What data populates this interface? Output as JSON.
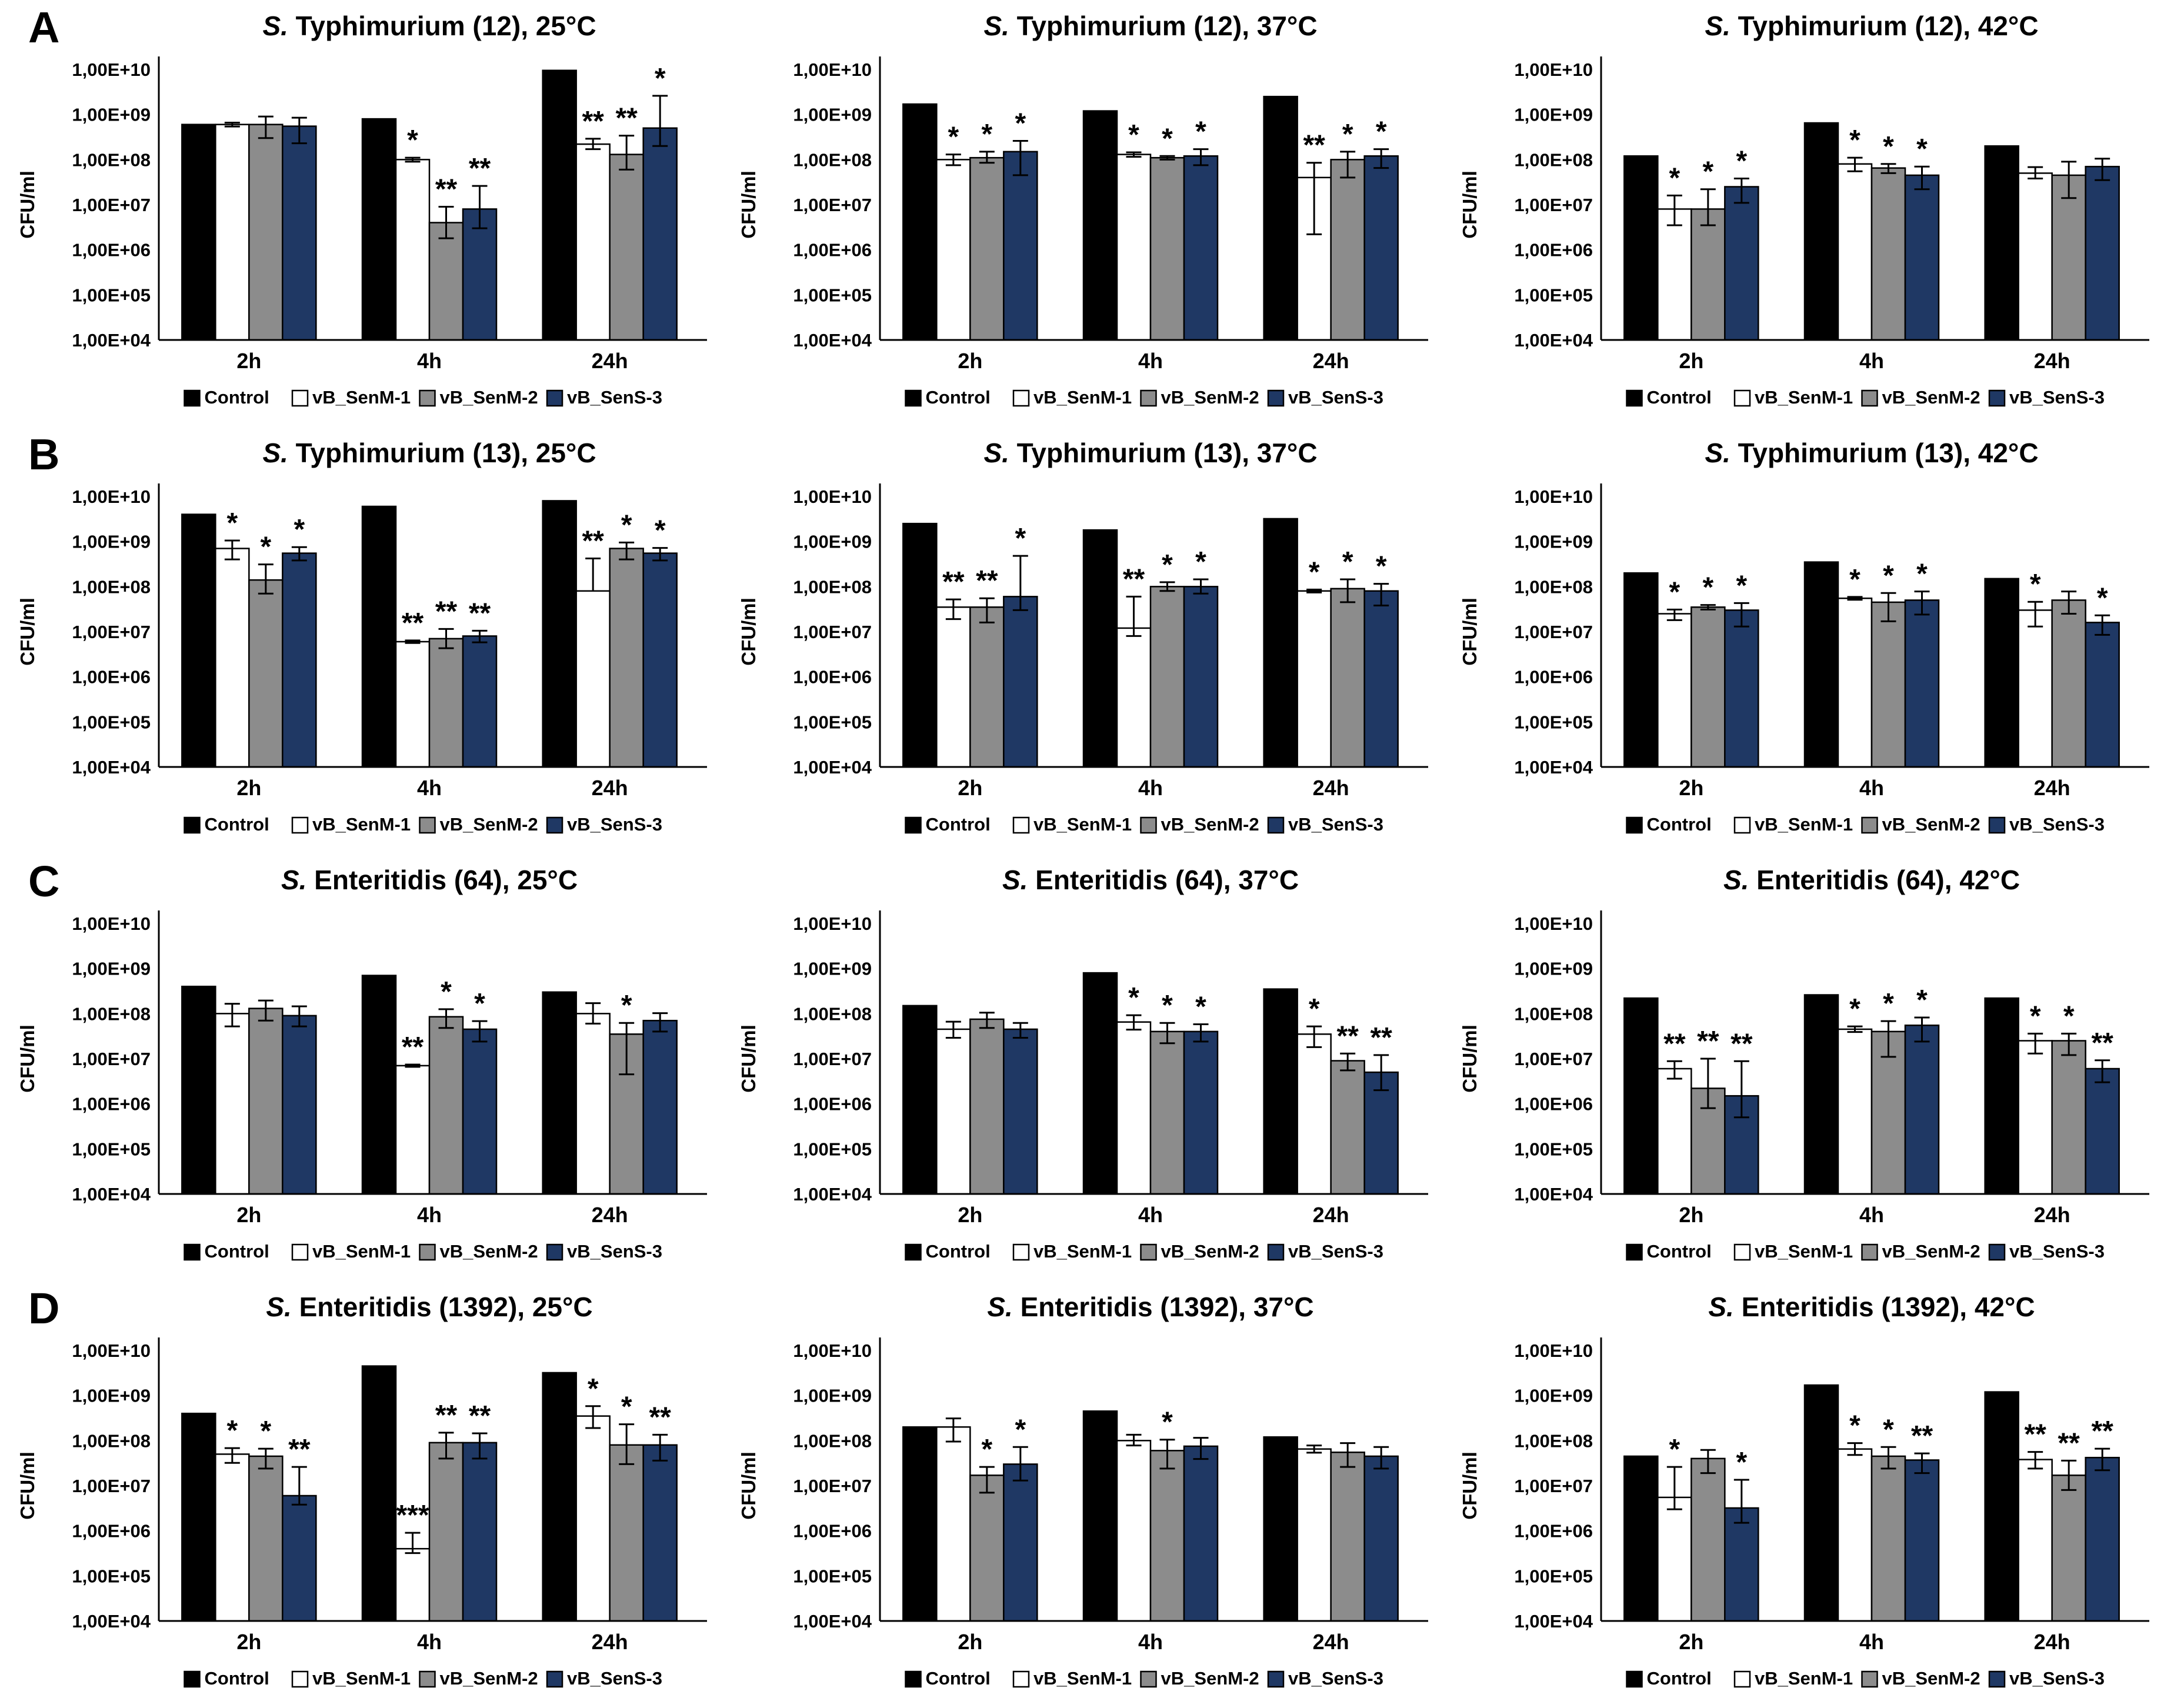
{
  "figure": {
    "panel_labels": [
      "A",
      "B",
      "C",
      "D"
    ]
  },
  "chart_common": {
    "type": "bar",
    "ylabel": "CFU/ml",
    "yticks": [
      "1,00E+10",
      "1,00E+09",
      "1,00E+08",
      "1,00E+07",
      "1,00E+06",
      "1,00E+05",
      "1,00E+04"
    ],
    "ylim": [
      10000,
      10000000000
    ],
    "log_scale": true,
    "grid": false,
    "categories": [
      "2h",
      "4h",
      "24h"
    ],
    "legend_position": "bottom",
    "series": [
      {
        "name": "Control",
        "color": "#000000",
        "marker": "filled-black-square"
      },
      {
        "name": "vB_SenM-1",
        "color": "#FFFFFF",
        "marker": "white-square"
      },
      {
        "name": "vB_SenM-2",
        "color": "#8C8C8C",
        "marker": "gray-square"
      },
      {
        "name": "vB_SenS-3",
        "color": "#1F3864",
        "marker": "navy-square"
      }
    ],
    "bar_format": "[value_CFU_per_ml, error_top_CFU_per_ml, error_bottom_CFU_per_ml, significance]"
  },
  "chart_data": [
    {
      "panel": "A",
      "title": "S. Typhimurium (12), 25°C",
      "values": [
        [
          [
            600000000.0,
            null,
            null,
            ""
          ],
          [
            600000000.0,
            660000000.0,
            540000000.0,
            ""
          ],
          [
            600000000.0,
            900000000.0,
            300000000.0,
            ""
          ],
          [
            550000000.0,
            850000000.0,
            230000000.0,
            ""
          ]
        ],
        [
          [
            800000000.0,
            null,
            null,
            ""
          ],
          [
            100000000.0,
            110000000.0,
            90000000.0,
            "*"
          ],
          [
            4000000.0,
            9000000.0,
            1800000.0,
            "**"
          ],
          [
            8000000.0,
            26000000.0,
            3000000.0,
            "**"
          ]
        ],
        [
          [
            9500000000.0,
            null,
            null,
            ""
          ],
          [
            220000000.0,
            290000000.0,
            170000000.0,
            "**"
          ],
          [
            130000000.0,
            340000000.0,
            60000000.0,
            "**"
          ],
          [
            500000000.0,
            2600000000.0,
            200000000.0,
            "*"
          ]
        ]
      ]
    },
    {
      "panel": "A",
      "title": "S. Typhimurium (12), 37°C",
      "values": [
        [
          [
            1700000000.0,
            null,
            null,
            ""
          ],
          [
            100000000.0,
            130000000.0,
            75000000.0,
            "*"
          ],
          [
            110000000.0,
            150000000.0,
            85000000.0,
            "*"
          ],
          [
            150000000.0,
            260000000.0,
            45000000.0,
            "*"
          ]
        ],
        [
          [
            1200000000.0,
            null,
            null,
            ""
          ],
          [
            130000000.0,
            145000000.0,
            115000000.0,
            "*"
          ],
          [
            110000000.0,
            120000000.0,
            100000000.0,
            "*"
          ],
          [
            120000000.0,
            170000000.0,
            75000000.0,
            "*"
          ]
        ],
        [
          [
            2500000000.0,
            null,
            null,
            ""
          ],
          [
            40000000.0,
            85000000.0,
            2200000.0,
            "**"
          ],
          [
            100000000.0,
            150000000.0,
            40000000.0,
            "*"
          ],
          [
            120000000.0,
            170000000.0,
            65000000.0,
            "*"
          ]
        ]
      ]
    },
    {
      "panel": "A",
      "title": "S. Typhimurium (12), 42°C",
      "values": [
        [
          [
            120000000.0,
            null,
            null,
            ""
          ],
          [
            8000000.0,
            16000000.0,
            3500000.0,
            "*"
          ],
          [
            8000000.0,
            22000000.0,
            3500000.0,
            "*"
          ],
          [
            25000000.0,
            38000000.0,
            11000000.0,
            "*"
          ]
        ],
        [
          [
            650000000.0,
            null,
            null,
            ""
          ],
          [
            80000000.0,
            110000000.0,
            55000000.0,
            "*"
          ],
          [
            65000000.0,
            80000000.0,
            50000000.0,
            "*"
          ],
          [
            45000000.0,
            70000000.0,
            22000000.0,
            "*"
          ]
        ],
        [
          [
            200000000.0,
            null,
            null,
            ""
          ],
          [
            50000000.0,
            68000000.0,
            38000000.0,
            ""
          ],
          [
            45000000.0,
            90000000.0,
            14000000.0,
            ""
          ],
          [
            70000000.0,
            105000000.0,
            35000000.0,
            ""
          ]
        ]
      ]
    },
    {
      "panel": "B",
      "title": "S. Typhimurium (13), 25°C",
      "values": [
        [
          [
            4000000000.0,
            null,
            null,
            ""
          ],
          [
            700000000.0,
            1050000000.0,
            400000000.0,
            "*"
          ],
          [
            140000000.0,
            310000000.0,
            70000000.0,
            "*"
          ],
          [
            550000000.0,
            750000000.0,
            380000000.0,
            "*"
          ]
        ],
        [
          [
            6000000000.0,
            null,
            null,
            ""
          ],
          [
            6000000.0,
            6400000.0,
            5600000.0,
            "**"
          ],
          [
            7000000.0,
            11500000.0,
            4300000.0,
            "**"
          ],
          [
            8000000.0,
            10500000.0,
            5800000.0,
            "**"
          ]
        ],
        [
          [
            8000000000.0,
            null,
            null,
            ""
          ],
          [
            80000000.0,
            420000000.0,
            null,
            "**"
          ],
          [
            700000000.0,
            950000000.0,
            400000000.0,
            "*"
          ],
          [
            550000000.0,
            720000000.0,
            380000000.0,
            "*"
          ]
        ]
      ]
    },
    {
      "panel": "B",
      "title": "S. Typhimurium (13), 37°C",
      "values": [
        [
          [
            2500000000.0,
            null,
            null,
            ""
          ],
          [
            35000000.0,
            52000000.0,
            19000000.0,
            "**"
          ],
          [
            35000000.0,
            55000000.0,
            16000000.0,
            "**"
          ],
          [
            60000000.0,
            480000000.0,
            30000000.0,
            "*"
          ]
        ],
        [
          [
            1800000000.0,
            null,
            null,
            ""
          ],
          [
            12000000.0,
            60000000.0,
            8000000.0,
            "**"
          ],
          [
            100000000.0,
            125000000.0,
            80000000.0,
            "*"
          ],
          [
            100000000.0,
            145000000.0,
            70000000.0,
            "*"
          ]
        ],
        [
          [
            3200000000.0,
            null,
            null,
            ""
          ],
          [
            80000000.0,
            86000000.0,
            74000000.0,
            "*"
          ],
          [
            90000000.0,
            145000000.0,
            45000000.0,
            "*"
          ],
          [
            80000000.0,
            115000000.0,
            38000000.0,
            "*"
          ]
        ]
      ]
    },
    {
      "panel": "B",
      "title": "S. Typhimurium (13), 42°C",
      "values": [
        [
          [
            200000000.0,
            null,
            null,
            ""
          ],
          [
            25000000.0,
            31000000.0,
            18000000.0,
            "*"
          ],
          [
            35000000.0,
            39000000.0,
            31000000.0,
            "*"
          ],
          [
            30000000.0,
            43000000.0,
            13000000.0,
            "*"
          ]
        ],
        [
          [
            350000000.0,
            null,
            null,
            ""
          ],
          [
            55000000.0,
            59000000.0,
            51000000.0,
            "*"
          ],
          [
            45000000.0,
            72000000.0,
            17000000.0,
            "*"
          ],
          [
            50000000.0,
            78000000.0,
            24000000.0,
            "*"
          ]
        ],
        [
          [
            150000000.0,
            null,
            null,
            ""
          ],
          [
            30000000.0,
            46000000.0,
            13000000.0,
            "*"
          ],
          [
            50000000.0,
            78000000.0,
            25000000.0,
            ""
          ],
          [
            16000000.0,
            23000000.0,
            8500000.0,
            "*"
          ]
        ]
      ]
    },
    {
      "panel": "C",
      "title": "S. Enteritidis (64), 25°C",
      "values": [
        [
          [
            400000000.0,
            null,
            null,
            ""
          ],
          [
            100000000.0,
            165000000.0,
            52000000.0,
            ""
          ],
          [
            130000000.0,
            195000000.0,
            70000000.0,
            ""
          ],
          [
            90000000.0,
            145000000.0,
            52000000.0,
            ""
          ]
        ],
        [
          [
            700000000.0,
            null,
            null,
            ""
          ],
          [
            7000000.0,
            7400000.0,
            6600000.0,
            "**"
          ],
          [
            85000000.0,
            125000000.0,
            48000000.0,
            "*"
          ],
          [
            45000000.0,
            68000000.0,
            24000000.0,
            "*"
          ]
        ],
        [
          [
            300000000.0,
            null,
            null,
            ""
          ],
          [
            100000000.0,
            170000000.0,
            60000000.0,
            ""
          ],
          [
            35000000.0,
            62000000.0,
            4500000.0,
            "*"
          ],
          [
            70000000.0,
            102000000.0,
            40000000.0,
            ""
          ]
        ]
      ]
    },
    {
      "panel": "C",
      "title": "S. Enteritidis (64), 37°C",
      "values": [
        [
          [
            150000000.0,
            null,
            null,
            ""
          ],
          [
            45000000.0,
            66000000.0,
            29000000.0,
            ""
          ],
          [
            75000000.0,
            105000000.0,
            48000000.0,
            ""
          ],
          [
            45000000.0,
            62000000.0,
            29000000.0,
            ""
          ]
        ],
        [
          [
            800000000.0,
            null,
            null,
            ""
          ],
          [
            65000000.0,
            92000000.0,
            44000000.0,
            "*"
          ],
          [
            40000000.0,
            62000000.0,
            22000000.0,
            "*"
          ],
          [
            40000000.0,
            58000000.0,
            24000000.0,
            "*"
          ]
        ],
        [
          [
            350000000.0,
            null,
            null,
            ""
          ],
          [
            35000000.0,
            52000000.0,
            18000000.0,
            "*"
          ],
          [
            9000000.0,
            13000000.0,
            5500000.0,
            "**"
          ],
          [
            5000000.0,
            12000000.0,
            2000000.0,
            "**"
          ]
        ]
      ]
    },
    {
      "panel": "C",
      "title": "S. Enteritidis (64), 42°C",
      "values": [
        [
          [
            220000000.0,
            null,
            null,
            ""
          ],
          [
            6000000.0,
            8800000.0,
            3600000.0,
            "**"
          ],
          [
            2200000.0,
            10000000.0,
            800000.0,
            "**"
          ],
          [
            1500000.0,
            8800000.0,
            500000.0,
            "**"
          ]
        ],
        [
          [
            260000000.0,
            null,
            null,
            ""
          ],
          [
            45000000.0,
            52000000.0,
            39000000.0,
            "*"
          ],
          [
            40000000.0,
            68000000.0,
            11000000.0,
            "*"
          ],
          [
            55000000.0,
            82000000.0,
            24000000.0,
            "*"
          ]
        ],
        [
          [
            220000000.0,
            null,
            null,
            ""
          ],
          [
            25000000.0,
            36000000.0,
            13000000.0,
            "*"
          ],
          [
            25000000.0,
            36000000.0,
            12000000.0,
            "*"
          ],
          [
            6000000.0,
            9200000.0,
            3000000.0,
            "**"
          ]
        ]
      ]
    },
    {
      "panel": "D",
      "title": "S. Enteritidis (1392), 25°C",
      "values": [
        [
          [
            400000000.0,
            null,
            null,
            ""
          ],
          [
            50000000.0,
            68000000.0,
            32000000.0,
            "*"
          ],
          [
            45000000.0,
            66000000.0,
            24000000.0,
            "*"
          ],
          [
            6000000.0,
            26000000.0,
            3800000.0,
            "**"
          ]
        ],
        [
          [
            4500000000.0,
            null,
            null,
            ""
          ],
          [
            400000.0,
            900000.0,
            320000.0,
            "***"
          ],
          [
            90000000.0,
            150000000.0,
            40000000.0,
            "**"
          ],
          [
            90000000.0,
            145000000.0,
            40000000.0,
            "**"
          ]
        ],
        [
          [
            3200000000.0,
            null,
            null,
            ""
          ],
          [
            350000000.0,
            580000000.0,
            190000000.0,
            "*"
          ],
          [
            80000000.0,
            230000000.0,
            30000000.0,
            "*"
          ],
          [
            80000000.0,
            135000000.0,
            36000000.0,
            "**"
          ]
        ]
      ]
    },
    {
      "panel": "D",
      "title": "S. Enteritidis (1392), 37°C",
      "values": [
        [
          [
            200000000.0,
            null,
            null,
            ""
          ],
          [
            200000000.0,
            310000000.0,
            95000000.0,
            ""
          ],
          [
            17000000.0,
            26000000.0,
            7000000.0,
            "*"
          ],
          [
            30000000.0,
            72000000.0,
            13000000.0,
            "*"
          ]
        ],
        [
          [
            450000000.0,
            null,
            null,
            ""
          ],
          [
            100000000.0,
            135000000.0,
            78000000.0,
            ""
          ],
          [
            60000000.0,
            105000000.0,
            24000000.0,
            "*"
          ],
          [
            75000000.0,
            115000000.0,
            39000000.0,
            ""
          ]
        ],
        [
          [
            120000000.0,
            null,
            null,
            ""
          ],
          [
            65000000.0,
            78000000.0,
            54000000.0,
            ""
          ],
          [
            55000000.0,
            88000000.0,
            26000000.0,
            ""
          ],
          [
            45000000.0,
            72000000.0,
            24000000.0,
            ""
          ]
        ]
      ]
    },
    {
      "panel": "D",
      "title": "S. Enteritidis (1392), 42°C",
      "values": [
        [
          [
            45000000.0,
            null,
            null,
            ""
          ],
          [
            5500000.0,
            26000000.0,
            3000000.0,
            "*"
          ],
          [
            40000000.0,
            62000000.0,
            19000000.0,
            ""
          ],
          [
            3200000.0,
            13500000.0,
            1500000.0,
            "*"
          ]
        ],
        [
          [
            1700000000.0,
            null,
            null,
            ""
          ],
          [
            65000000.0,
            88000000.0,
            48000000.0,
            "*"
          ],
          [
            45000000.0,
            72000000.0,
            24000000.0,
            "*"
          ],
          [
            37000000.0,
            52000000.0,
            19000000.0,
            "**"
          ]
        ],
        [
          [
            1200000000.0,
            null,
            null,
            ""
          ],
          [
            38000000.0,
            56000000.0,
            24000000.0,
            "**"
          ],
          [
            17000000.0,
            36000000.0,
            8000000.0,
            "**"
          ],
          [
            42000000.0,
            66000000.0,
            22000000.0,
            "**"
          ]
        ]
      ]
    }
  ]
}
